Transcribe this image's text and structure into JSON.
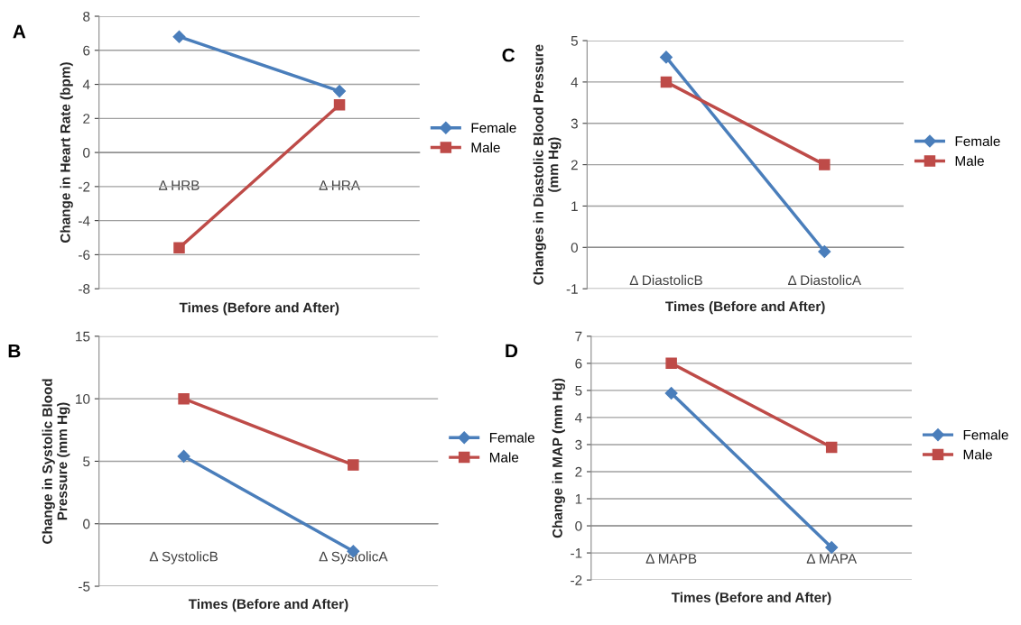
{
  "chart_data": [
    {
      "type": "line",
      "annotations": [
        "A"
      ],
      "ylabel": "Change in Heart Rate (bpm)",
      "xlabel": "Times (Before and After)",
      "categories": [
        "Δ HRB",
        "Δ HRA"
      ],
      "ylim": [
        -8,
        8
      ],
      "yticks": [
        -8,
        -6,
        -4,
        -2,
        0,
        2,
        4,
        6,
        8
      ],
      "grid": "y",
      "legend": "right",
      "series": [
        {
          "name": "Female",
          "color": "#4a7ebb",
          "marker": "diamond",
          "values": [
            6.8,
            3.6
          ]
        },
        {
          "name": "Male",
          "color": "#be4b48",
          "marker": "square",
          "values": [
            -5.6,
            2.8
          ]
        }
      ]
    },
    {
      "type": "line",
      "annotations": [
        "B"
      ],
      "ylabel": "Change in Systolic Blood\nPressure (mm Hg)",
      "xlabel": "Times (Before and After)",
      "categories": [
        "Δ SystolicB",
        "Δ SystolicA"
      ],
      "ylim": [
        -5,
        15
      ],
      "yticks": [
        -5,
        0,
        5,
        10,
        15
      ],
      "grid": "y",
      "legend": "right",
      "series": [
        {
          "name": "Female",
          "color": "#4a7ebb",
          "marker": "diamond",
          "values": [
            5.4,
            -2.2
          ]
        },
        {
          "name": "Male",
          "color": "#be4b48",
          "marker": "square",
          "values": [
            10,
            4.7
          ]
        }
      ]
    },
    {
      "type": "line",
      "annotations": [
        "C"
      ],
      "ylabel": "Changes in Diastolic Blood Pressure\n(mm Hg)",
      "xlabel": "Times (Before and After)",
      "categories": [
        "Δ DiastolicB",
        "Δ DiastolicA"
      ],
      "ylim": [
        -1,
        5
      ],
      "yticks": [
        -1,
        0,
        1,
        2,
        3,
        4,
        5
      ],
      "grid": "y",
      "legend": "right",
      "series": [
        {
          "name": "Female",
          "color": "#4a7ebb",
          "marker": "diamond",
          "values": [
            4.6,
            -0.1
          ]
        },
        {
          "name": "Male",
          "color": "#be4b48",
          "marker": "square",
          "values": [
            4,
            2
          ]
        }
      ]
    },
    {
      "type": "line",
      "annotations": [
        "D"
      ],
      "ylabel": "Change in MAP (mm Hg)",
      "xlabel": "Times (Before and After)",
      "categories": [
        "Δ MAPB",
        "Δ MAPA"
      ],
      "ylim": [
        -2,
        7
      ],
      "yticks": [
        -2,
        -1,
        0,
        1,
        2,
        3,
        4,
        5,
        6,
        7
      ],
      "grid": "y",
      "legend": "right",
      "series": [
        {
          "name": "Female",
          "color": "#4a7ebb",
          "marker": "diamond",
          "values": [
            4.9,
            -0.8
          ]
        },
        {
          "name": "Male",
          "color": "#be4b48",
          "marker": "square",
          "values": [
            6,
            2.9
          ]
        }
      ]
    }
  ]
}
